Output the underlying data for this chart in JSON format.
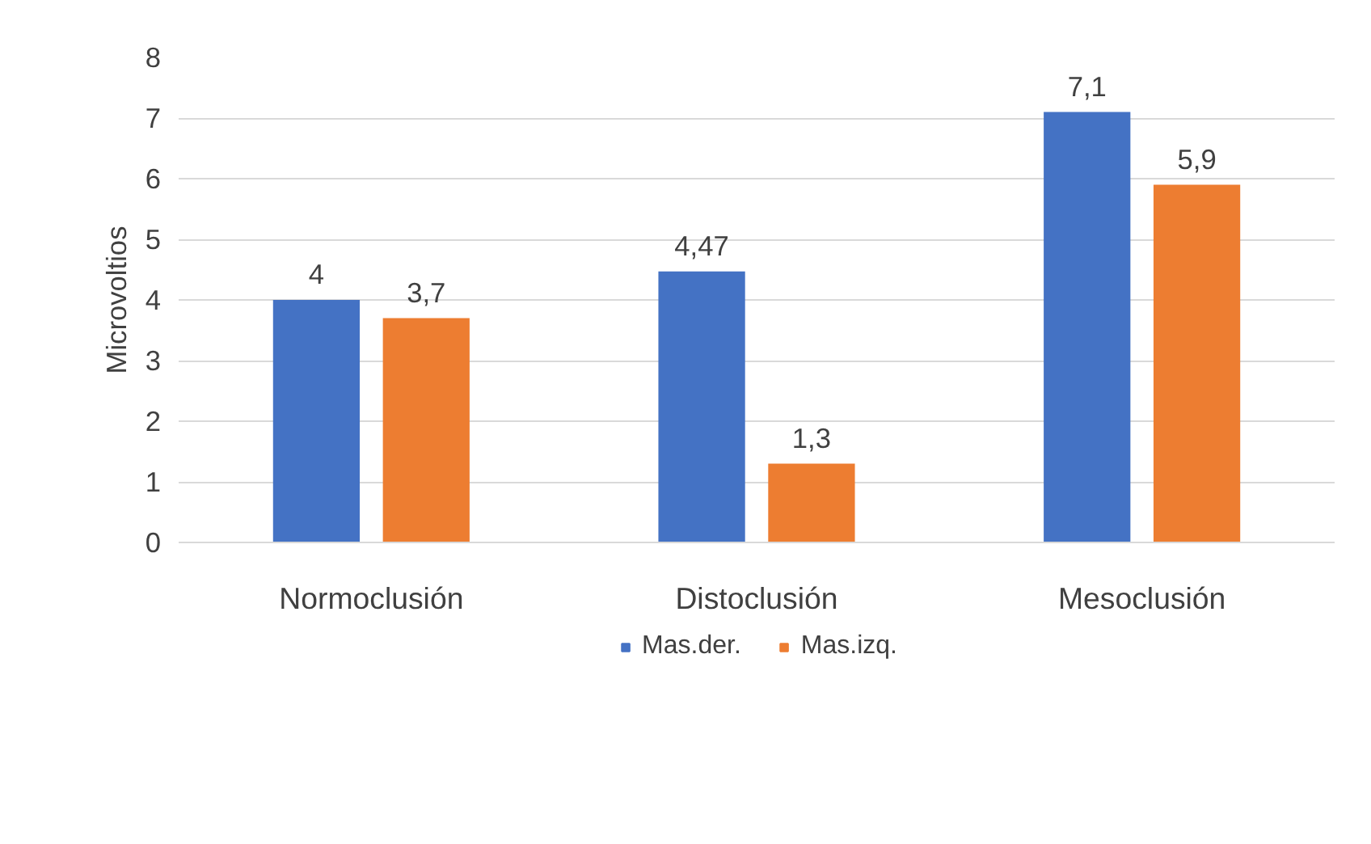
{
  "chart_data": {
    "type": "bar",
    "ylabel": "Microvoltios",
    "categories": [
      "Normoclusión",
      "Distoclusión",
      "Mesoclusión"
    ],
    "series": [
      {
        "name": "Mas.der.",
        "color": "#4472c4",
        "values": [
          4,
          4.47,
          7.1
        ],
        "value_labels": [
          "4",
          "4,47",
          "7,1"
        ]
      },
      {
        "name": "Mas.izq.",
        "color": "#ed7d31",
        "values": [
          3.7,
          1.3,
          5.9
        ],
        "value_labels": [
          "3,7",
          "1,3",
          "5,9"
        ]
      }
    ],
    "ylim": [
      0,
      8
    ],
    "yticks": [
      0,
      1,
      2,
      3,
      4,
      5,
      6,
      7,
      8
    ],
    "grid": "y",
    "legend": "bottom"
  }
}
